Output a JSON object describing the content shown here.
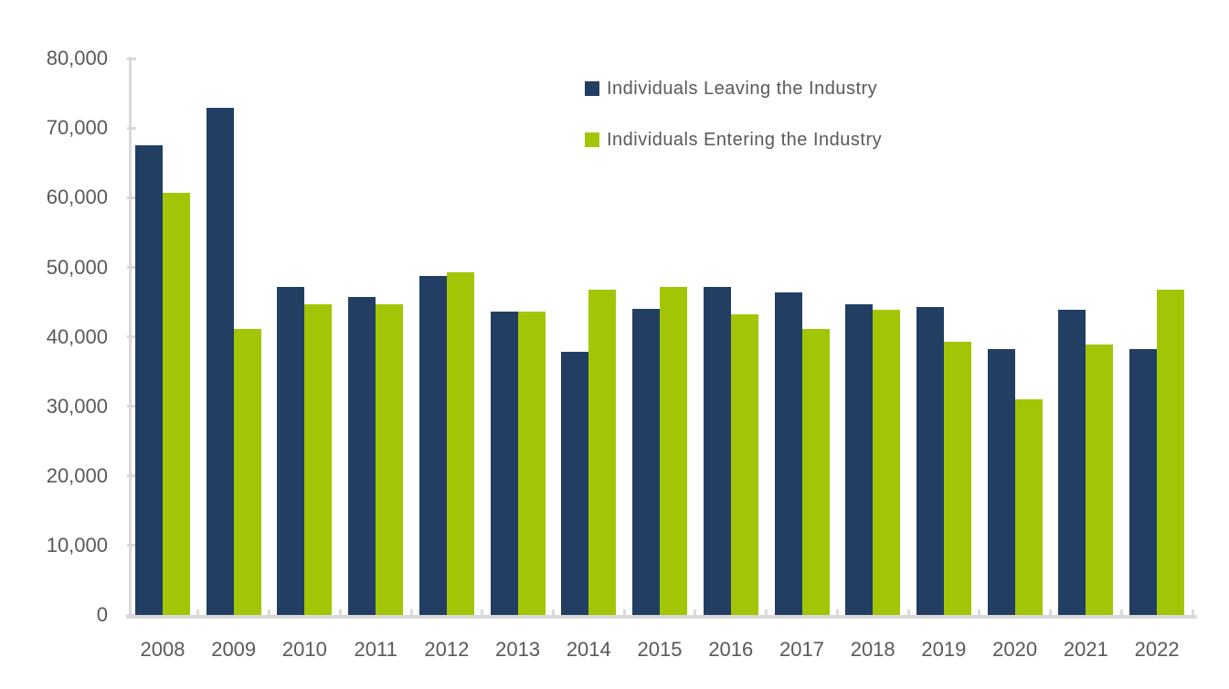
{
  "background": "#FFFFFF",
  "colors": {
    "axis_line": "#D9D9D9",
    "label_text": "#595959",
    "series_leaving": "#223E63",
    "series_entering": "#A2C605"
  },
  "chart_data": {
    "type": "bar",
    "title": "",
    "xlabel": "",
    "ylabel": "",
    "categories": [
      "2008",
      "2009",
      "2010",
      "2011",
      "2012",
      "2013",
      "2014",
      "2015",
      "2016",
      "2017",
      "2018",
      "2019",
      "2020",
      "2021",
      "2022"
    ],
    "series": [
      {
        "name": "Individuals Leaving the Industry",
        "color": "#223E63",
        "values": [
          67600,
          72900,
          47200,
          45700,
          48700,
          43600,
          37800,
          44000,
          47200,
          46400,
          44700,
          44300,
          38200,
          43900,
          38200
        ]
      },
      {
        "name": "Individuals Entering the Industry",
        "color": "#A2C605",
        "values": [
          60700,
          41100,
          44700,
          44700,
          49300,
          43600,
          46800,
          47200,
          43300,
          41100,
          43900,
          39300,
          31000,
          38900,
          46800
        ]
      }
    ],
    "ylim": [
      0,
      80000
    ],
    "ytick_step": 10000,
    "ytick_labels": [
      "0",
      "10,000",
      "20,000",
      "30,000",
      "40,000",
      "50,000",
      "60,000",
      "70,000",
      "80,000"
    ],
    "grid": false,
    "legend_position": "top-center"
  }
}
